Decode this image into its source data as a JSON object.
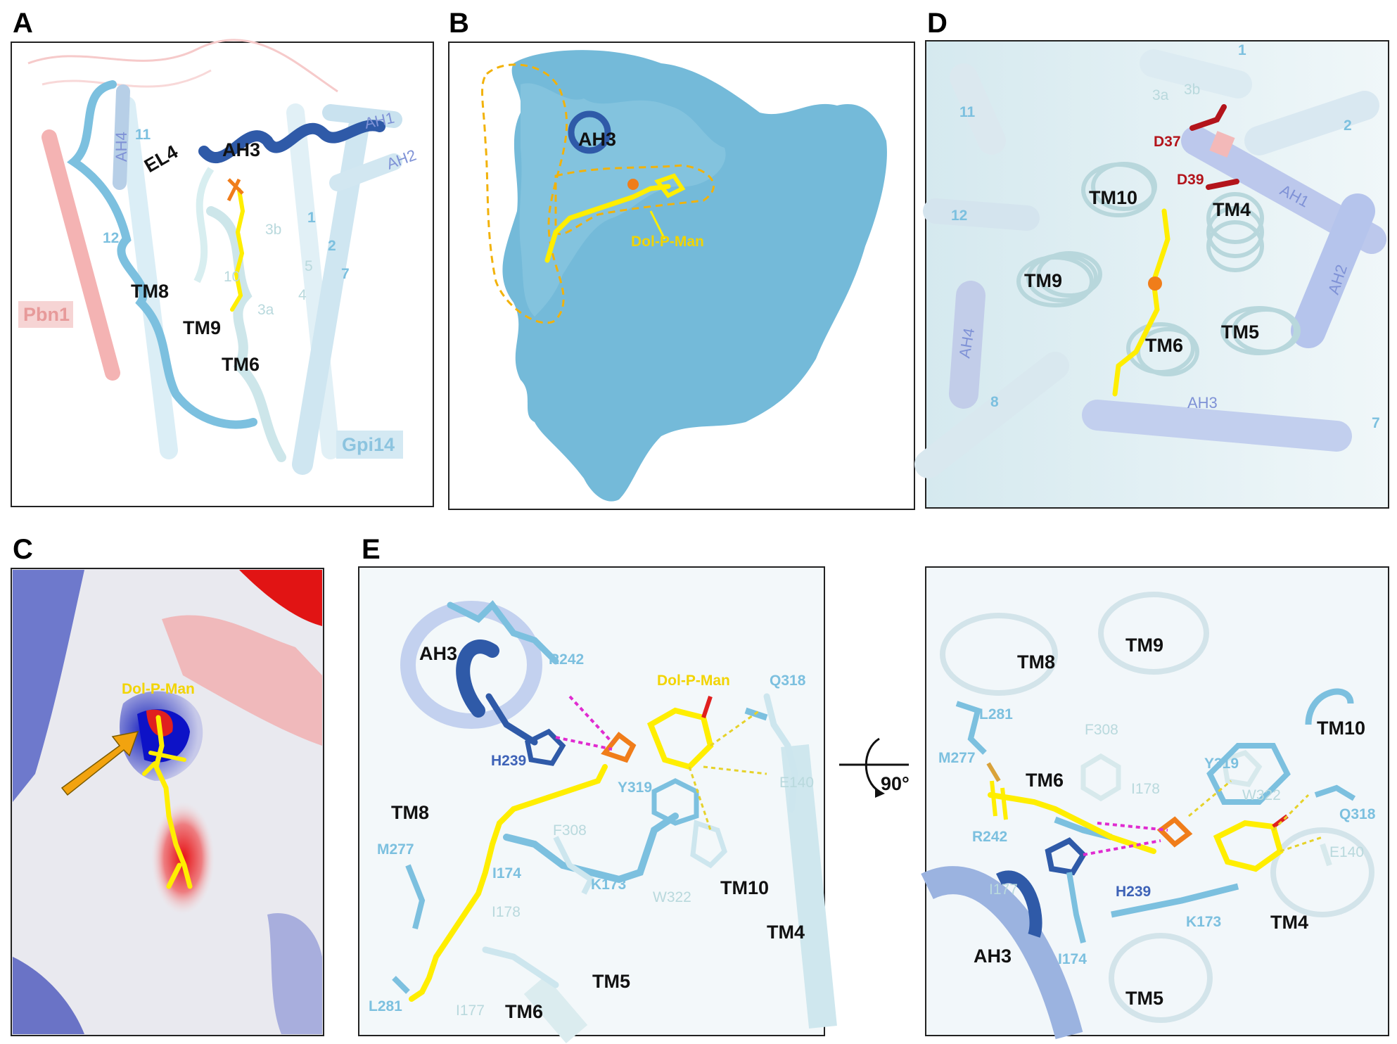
{
  "panels": {
    "A": {
      "letter": "A",
      "labels": {
        "el4": "EL4",
        "ah3": "AH3",
        "ah1": "AH1",
        "ah2": "AH2",
        "ah4": "AH4",
        "n11": "11",
        "n12": "12",
        "n1": "1",
        "n2": "2",
        "n3b": "3b",
        "n3a": "3a",
        "n4": "4",
        "n5": "5",
        "n7": "7",
        "n10": "10",
        "tm8": "TM8",
        "tm9": "TM9",
        "tm6": "TM6",
        "pbn1": "Pbn1",
        "gpi14": "Gpi14"
      }
    },
    "B": {
      "letter": "B",
      "labels": {
        "ah3": "AH3",
        "dpm": "Dol-P-Man"
      }
    },
    "C": {
      "letter": "C",
      "labels": {
        "dpm": "Dol-P-Man"
      }
    },
    "D": {
      "letter": "D",
      "labels": {
        "n1": "1",
        "n2": "2",
        "n3a": "3a",
        "n3b": "3b",
        "n7": "7",
        "n8": "8",
        "n11": "11",
        "n12": "12",
        "ah1": "AH1",
        "ah2": "AH2",
        "ah3": "AH3",
        "ah4": "AH4",
        "d37": "D37",
        "d39": "D39",
        "tm10": "TM10",
        "tm4": "TM4",
        "tm9": "TM9",
        "tm5": "TM5",
        "tm6": "TM6"
      }
    },
    "E": {
      "letter": "E",
      "left": {
        "ah3": "AH3",
        "r242": "R242",
        "h239": "H239",
        "dpm": "Dol-P-Man",
        "q318": "Q318",
        "y319": "Y319",
        "e140": "E140",
        "tm8": "TM8",
        "m277": "M277",
        "i174": "I174",
        "f308": "F308",
        "k173": "K173",
        "w322": "W322",
        "tm10": "TM10",
        "i178": "I178",
        "tm4": "TM4",
        "tm5": "TM5",
        "l281": "L281",
        "i177": "I177",
        "tm6": "TM6"
      },
      "rotation": "90°",
      "right": {
        "tm8": "TM8",
        "tm9": "TM9",
        "l281": "L281",
        "f308": "F308",
        "m277": "M277",
        "tm10": "TM10",
        "tm6": "TM6",
        "y319": "Y319",
        "i178": "I178",
        "w322": "W322",
        "q318": "Q318",
        "r242": "R242",
        "e140": "E140",
        "i177": "I177",
        "h239": "H239",
        "k173": "K173",
        "tm4": "TM4",
        "ah3": "AH3",
        "i174": "I174",
        "tm5": "TM5"
      }
    }
  },
  "colors": {
    "light_blue": "#7cc0df",
    "dark_blue": "#2f5aa8",
    "pale_cyan": "#cfe7ea",
    "surface": "#74bad9",
    "ligand": "#ffee00",
    "phosphate": "#f07d1a",
    "oxygen_red": "#e0201f",
    "pbn1": "#f19a9a",
    "lavender": "#8da2e0"
  }
}
